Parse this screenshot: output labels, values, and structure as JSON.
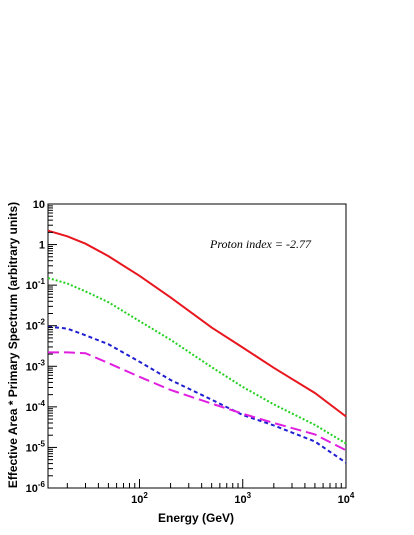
{
  "chart_data": {
    "type": "line",
    "title": "",
    "xlabel": "Energy (GeV)",
    "ylabel": "Effective Area * Primary Spectrum (arbitrary units)",
    "x_scale": "log",
    "y_scale": "log",
    "xlim": [
      13,
      10000
    ],
    "ylim": [
      1e-06,
      10
    ],
    "x_ticks": [
      {
        "base": "10",
        "exp": "2",
        "value": 100
      },
      {
        "base": "10",
        "exp": "3",
        "value": 1000
      },
      {
        "base": "10",
        "exp": "4",
        "value": 10000
      }
    ],
    "y_ticks": [
      {
        "base": "10",
        "exp": "-6",
        "value": 1e-06
      },
      {
        "base": "10",
        "exp": "-5",
        "value": 1e-05
      },
      {
        "base": "10",
        "exp": "-4",
        "value": 0.0001
      },
      {
        "base": "10",
        "exp": "-3",
        "value": 0.001
      },
      {
        "base": "10",
        "exp": "-2",
        "value": 0.01
      },
      {
        "base": "10",
        "exp": "-1",
        "value": 0.1
      },
      {
        "base": "1",
        "exp": "",
        "value": 1
      },
      {
        "base": "10",
        "exp": "",
        "value": 10
      }
    ],
    "annotation": "Proton index = -2.77",
    "grid": false,
    "legend": "none",
    "series": [
      {
        "color": "#e8171f",
        "style": "solid",
        "points": [
          [
            13,
            2.2
          ],
          [
            20,
            1.6
          ],
          [
            30,
            1.05
          ],
          [
            50,
            0.52
          ],
          [
            100,
            0.17
          ],
          [
            200,
            0.05
          ],
          [
            500,
            0.009
          ],
          [
            1000,
            0.0029
          ],
          [
            2000,
            0.00092
          ],
          [
            5000,
            0.00022
          ],
          [
            10000,
            5.8e-05
          ]
        ]
      },
      {
        "color": "#22d11f",
        "style": "dotted",
        "points": [
          [
            13,
            0.15
          ],
          [
            20,
            0.11
          ],
          [
            30,
            0.07
          ],
          [
            50,
            0.038
          ],
          [
            100,
            0.013
          ],
          [
            200,
            0.0045
          ],
          [
            500,
            0.00095
          ],
          [
            1000,
            0.00031
          ],
          [
            2000,
            0.000115
          ],
          [
            5000,
            3.6e-05
          ],
          [
            10000,
            1.25e-05
          ]
        ]
      },
      {
        "color": "#1f1fd1",
        "style": "dashed",
        "points": [
          [
            13,
            0.0095
          ],
          [
            20,
            0.0085
          ],
          [
            30,
            0.0058
          ],
          [
            50,
            0.0035
          ],
          [
            100,
            0.0013
          ],
          [
            200,
            0.00046
          ],
          [
            500,
            0.00015
          ],
          [
            1000,
            6.3e-05
          ],
          [
            2000,
            3.5e-05
          ],
          [
            5000,
            1.4e-05
          ],
          [
            10000,
            4.2e-06
          ]
        ]
      },
      {
        "color": "#e01fe0",
        "style": "longdash",
        "points": [
          [
            13,
            0.0022
          ],
          [
            20,
            0.0022
          ],
          [
            30,
            0.0021
          ],
          [
            50,
            0.0012
          ],
          [
            100,
            0.00055
          ],
          [
            200,
            0.00026
          ],
          [
            500,
            0.00012
          ],
          [
            1000,
            6.8e-05
          ],
          [
            2000,
            4e-05
          ],
          [
            5000,
            2.1e-05
          ],
          [
            10000,
            8.5e-06
          ]
        ]
      }
    ]
  }
}
